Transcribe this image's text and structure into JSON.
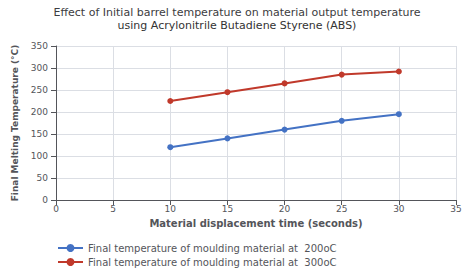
{
  "chart_data": {
    "type": "line",
    "title": "Effect of Initial barrel temperature on material output temperature",
    "subtitle": "using Acrylonitrile Butadiene Styrene (ABS)",
    "x_label": "Material displacement time (seconds)",
    "y_label": "Final Melting Temperature (°C)",
    "x": [
      10,
      15,
      20,
      25,
      30
    ],
    "series": [
      {
        "name": "Final temperature of moulding material at  200oC",
        "color": "#4472c4",
        "values": [
          120,
          140,
          160,
          180,
          195
        ]
      },
      {
        "name": "Final temperature of moulding material at  300oC",
        "color": "#c0392b",
        "values": [
          225,
          245,
          265,
          285,
          292
        ]
      }
    ],
    "xlim": [
      0,
      35
    ],
    "ylim": [
      0,
      350
    ],
    "xticks": [
      0,
      5,
      10,
      15,
      20,
      25,
      30,
      35
    ],
    "yticks": [
      0,
      50,
      100,
      150,
      200,
      250,
      300,
      350
    ],
    "grid": true,
    "legend": "bottom",
    "marker": "circle",
    "line_style": "solid"
  }
}
